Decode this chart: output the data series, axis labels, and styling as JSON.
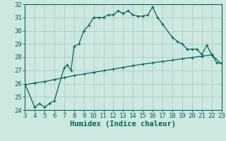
{
  "xlabel": "Humidex (Indice chaleur)",
  "ylabel": "",
  "background_color": "#cce8e0",
  "grid_color": "#aaccc4",
  "line_color": "#006858",
  "xlim": [
    3,
    23
  ],
  "ylim": [
    24,
    32
  ],
  "xticks": [
    3,
    4,
    5,
    6,
    7,
    8,
    9,
    10,
    11,
    12,
    13,
    14,
    15,
    16,
    17,
    18,
    19,
    20,
    21,
    22,
    23
  ],
  "yticks": [
    24,
    25,
    26,
    27,
    28,
    29,
    30,
    31,
    32
  ],
  "curve1_x": [
    3,
    4,
    4.5,
    5,
    5.5,
    6,
    7,
    7.3,
    7.7,
    8,
    8.5,
    9,
    9.5,
    10,
    10.5,
    11,
    11.5,
    12,
    12.5,
    13,
    13.5,
    14,
    14.5,
    15,
    15.5,
    16,
    16.5,
    17,
    18,
    18.5,
    19,
    19.5,
    20,
    20.5,
    21,
    21.5,
    22,
    22.5,
    23
  ],
  "curve1_y": [
    26,
    24.2,
    24.5,
    24.2,
    24.5,
    24.7,
    27.2,
    27.4,
    27.0,
    28.8,
    29.0,
    30.0,
    30.4,
    31.0,
    31.0,
    31.0,
    31.2,
    31.2,
    31.5,
    31.3,
    31.5,
    31.2,
    31.1,
    31.1,
    31.2,
    31.8,
    31.0,
    30.5,
    29.5,
    29.2,
    29.0,
    28.6,
    28.6,
    28.6,
    28.2,
    28.9,
    28.2,
    27.6,
    27.5
  ],
  "curve2_x": [
    3,
    4,
    5,
    6,
    7,
    8,
    9,
    10,
    11,
    12,
    13,
    14,
    15,
    16,
    17,
    18,
    19,
    20,
    21,
    22,
    23
  ],
  "curve2_y": [
    25.9,
    26.05,
    26.15,
    26.3,
    26.45,
    26.6,
    26.72,
    26.85,
    26.97,
    27.1,
    27.22,
    27.35,
    27.47,
    27.57,
    27.67,
    27.77,
    27.87,
    27.97,
    28.07,
    28.17,
    27.5
  ],
  "font_color": "#006858",
  "font_size": 6.5
}
